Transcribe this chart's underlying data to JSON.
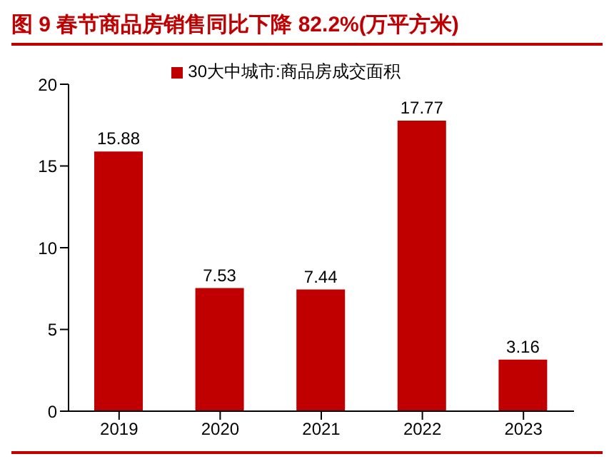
{
  "chart_data": {
    "type": "bar",
    "title": "图 9 春节商品房销售同比下降 82.2%(万平方米)",
    "categories": [
      "2019",
      "2020",
      "2021",
      "2022",
      "2023"
    ],
    "series": [
      {
        "name": "30大中城市:商品房成交面积",
        "color": "#c00000",
        "values": [
          15.88,
          7.53,
          7.44,
          17.77,
          3.16
        ]
      }
    ],
    "ylim": [
      0,
      20
    ],
    "yticks": [
      0,
      5,
      10,
      15,
      20
    ],
    "grid": false,
    "legend": "top",
    "data_labels": true
  }
}
